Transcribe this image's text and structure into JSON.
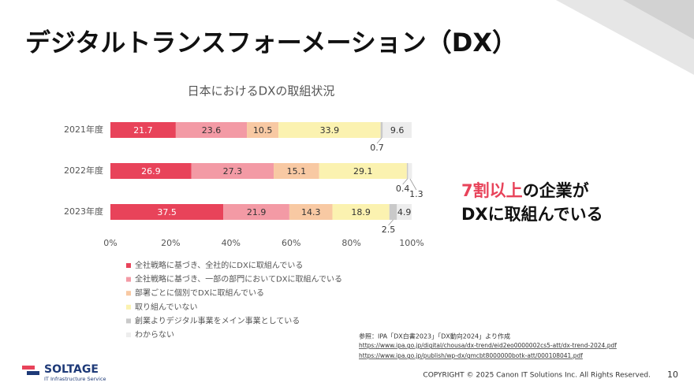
{
  "slide_title": "デジタルトランスフォーメーション（DX）",
  "chart_data": {
    "type": "stacked-bar-horizontal",
    "title": "日本におけるDXの取組状況",
    "categories": [
      "2021年度",
      "2022年度",
      "2023年度"
    ],
    "series": [
      {
        "name": "全社戦略に基づき、全社的にDXに取組んでいる",
        "color": "#e8435a",
        "values": [
          21.7,
          26.9,
          37.5
        ]
      },
      {
        "name": "全社戦略に基づき、一部の部門においてDXに取組んでいる",
        "color": "#f39aa5",
        "values": [
          23.6,
          27.3,
          21.9
        ]
      },
      {
        "name": "部署ごとに個別でDXに取組んでいる",
        "color": "#f8c9a3",
        "values": [
          10.5,
          15.1,
          14.3
        ]
      },
      {
        "name": "取り組んでいない",
        "color": "#fbf2b0",
        "values": [
          33.9,
          29.1,
          18.9
        ]
      },
      {
        "name": "創業よりデジタル事業をメイン事業としている",
        "color": "#c9c9c9",
        "values": [
          0.7,
          0.4,
          2.5
        ]
      },
      {
        "name": "わからない",
        "color": "#ededed",
        "values": [
          9.6,
          1.3,
          4.9
        ]
      }
    ],
    "xlim": [
      0,
      100
    ],
    "xticks": [
      {
        "value": 0,
        "label": "0%"
      },
      {
        "value": 20,
        "label": "20%"
      },
      {
        "value": 40,
        "label": "40%"
      },
      {
        "value": 60,
        "label": "60%"
      },
      {
        "value": 80,
        "label": "80%"
      },
      {
        "value": 100,
        "label": "100%"
      }
    ],
    "legend": "bottom-left"
  },
  "callout": {
    "highlight": "7割以上",
    "text1": "の企業が",
    "text2": "DXに取組んでいる"
  },
  "reference": {
    "note": "参照：IPA「DX白書2023」「DX動向2024」より作成",
    "urls": [
      "https://www.ipa.go.jp/digital/chousa/dx-trend/eid2eo0000002cs5-att/dx-trend-2024.pdf",
      "https://www.ipa.go.jp/publish/wp-dx/gmcbt8000000botk-att/000108041.pdf"
    ]
  },
  "logo": {
    "name": "SOLTAGE",
    "tagline": "IT Infrastructure Service"
  },
  "copyright": "COPYRIGHT © 2025 Canon IT Solutions Inc. All Rights Reserved.",
  "page_number": 10
}
